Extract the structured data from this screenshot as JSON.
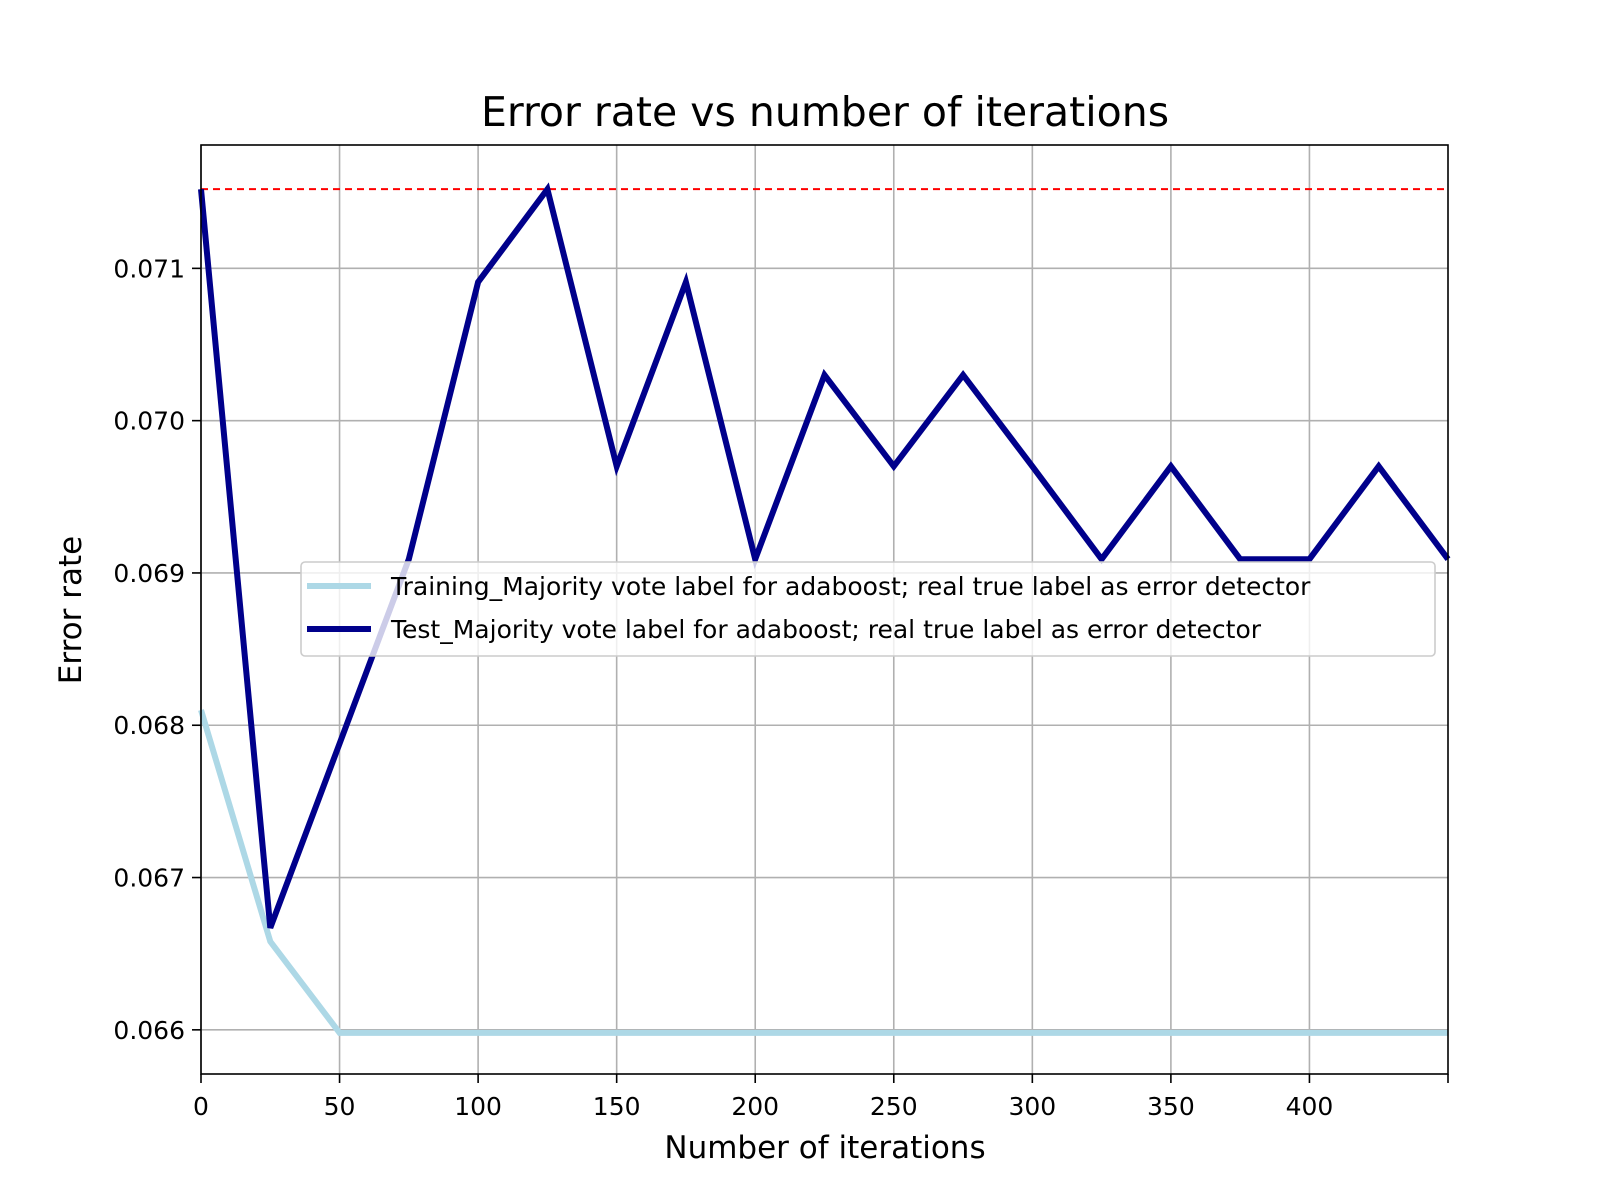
{
  "chart_data": {
    "type": "line",
    "title": "Error rate vs number of iterations",
    "xlabel": "Number of iterations",
    "ylabel": "Error rate",
    "xlim": [
      0,
      450
    ],
    "ylim": [
      0.06571,
      0.07181
    ],
    "xticks": [
      0,
      50,
      100,
      150,
      200,
      250,
      300,
      350,
      400
    ],
    "xtick_labels": [
      "0",
      "50",
      "100",
      "150",
      "200",
      "250",
      "300",
      "350",
      "400"
    ],
    "yticks": [
      0.066,
      0.067,
      0.068,
      0.069,
      0.07,
      0.071
    ],
    "ytick_labels": [
      "0.066",
      "0.067",
      "0.068",
      "0.069",
      "0.070",
      "0.071"
    ],
    "grid": true,
    "legend_position": "center-right",
    "x": [
      0,
      25,
      50,
      75,
      100,
      125,
      150,
      175,
      200,
      225,
      250,
      275,
      300,
      325,
      350,
      375,
      400,
      425,
      450
    ],
    "series": [
      {
        "name": "Training_Majority vote label for adaboost; real true label as error detector",
        "color": "#add8e6",
        "values": [
          0.0681,
          0.06658,
          0.06598,
          0.06598,
          0.06598,
          0.06598,
          0.06598,
          0.06598,
          0.06598,
          0.06598,
          0.06598,
          0.06598,
          0.06598,
          0.06598,
          0.06598,
          0.06598,
          0.06598,
          0.06598,
          0.06598
        ]
      },
      {
        "name": "Test_Majority vote label for adaboost; real true label as error detector",
        "color": "#00008b",
        "values": [
          0.07152,
          0.06667,
          0.06788,
          0.06909,
          0.07091,
          0.07152,
          0.0697,
          0.07091,
          0.06909,
          0.0703,
          0.0697,
          0.0703,
          0.0697,
          0.06909,
          0.0697,
          0.06909,
          0.06909,
          0.0697,
          0.06909
        ]
      }
    ],
    "reference_line": {
      "y": 0.07152,
      "color": "#ff0000",
      "style": "dashed"
    }
  }
}
